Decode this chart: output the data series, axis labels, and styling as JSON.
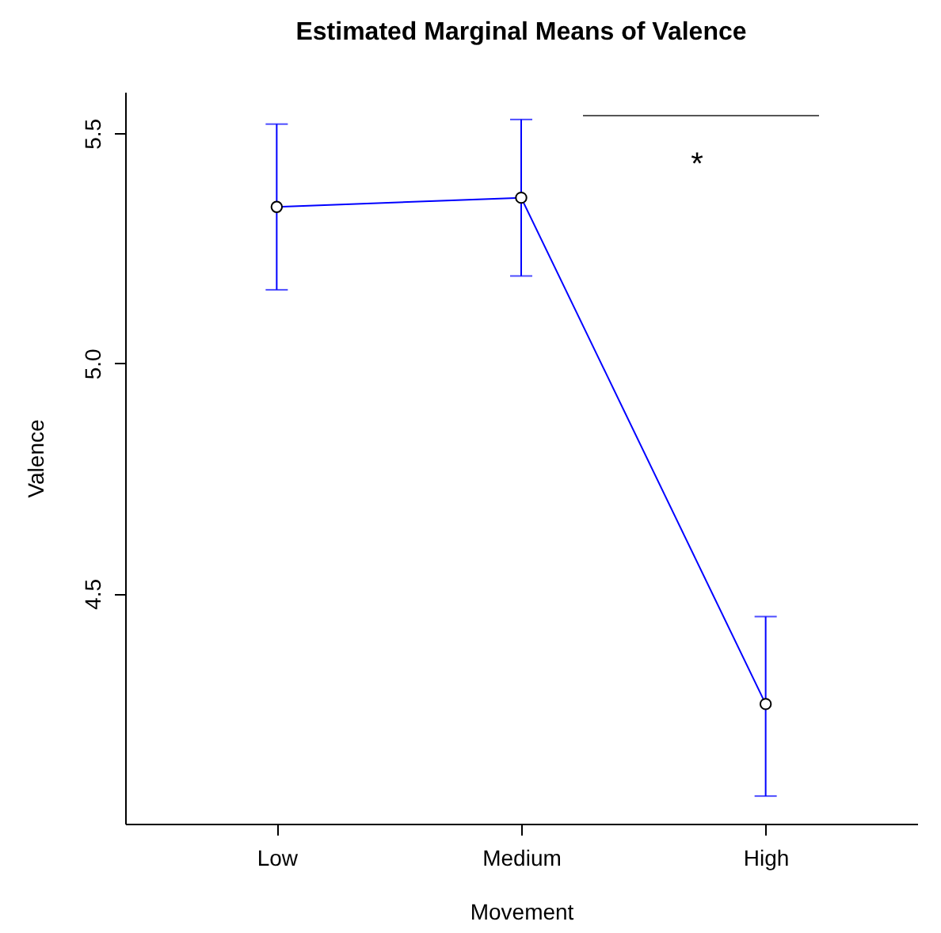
{
  "chart_data": {
    "type": "line",
    "title": "Estimated Marginal Means of Valence",
    "xlabel": "Movement",
    "ylabel": "Valence",
    "categories": [
      "Low",
      "Medium",
      "High"
    ],
    "series": [
      {
        "color": "#0000ff",
        "values": [
          5.34,
          5.36,
          4.26
        ],
        "errors": [
          [
            5.16,
            5.52
          ],
          [
            5.19,
            5.53
          ],
          [
            4.06,
            4.45
          ]
        ]
      }
    ],
    "ylim": [
      4.0,
      5.59
    ],
    "yticks": [
      4.5,
      {
        "value": 5,
        "label": "5.0"
      },
      5.5
    ],
    "marker": "circle",
    "grid": false,
    "annotations": [
      "*"
    ]
  }
}
